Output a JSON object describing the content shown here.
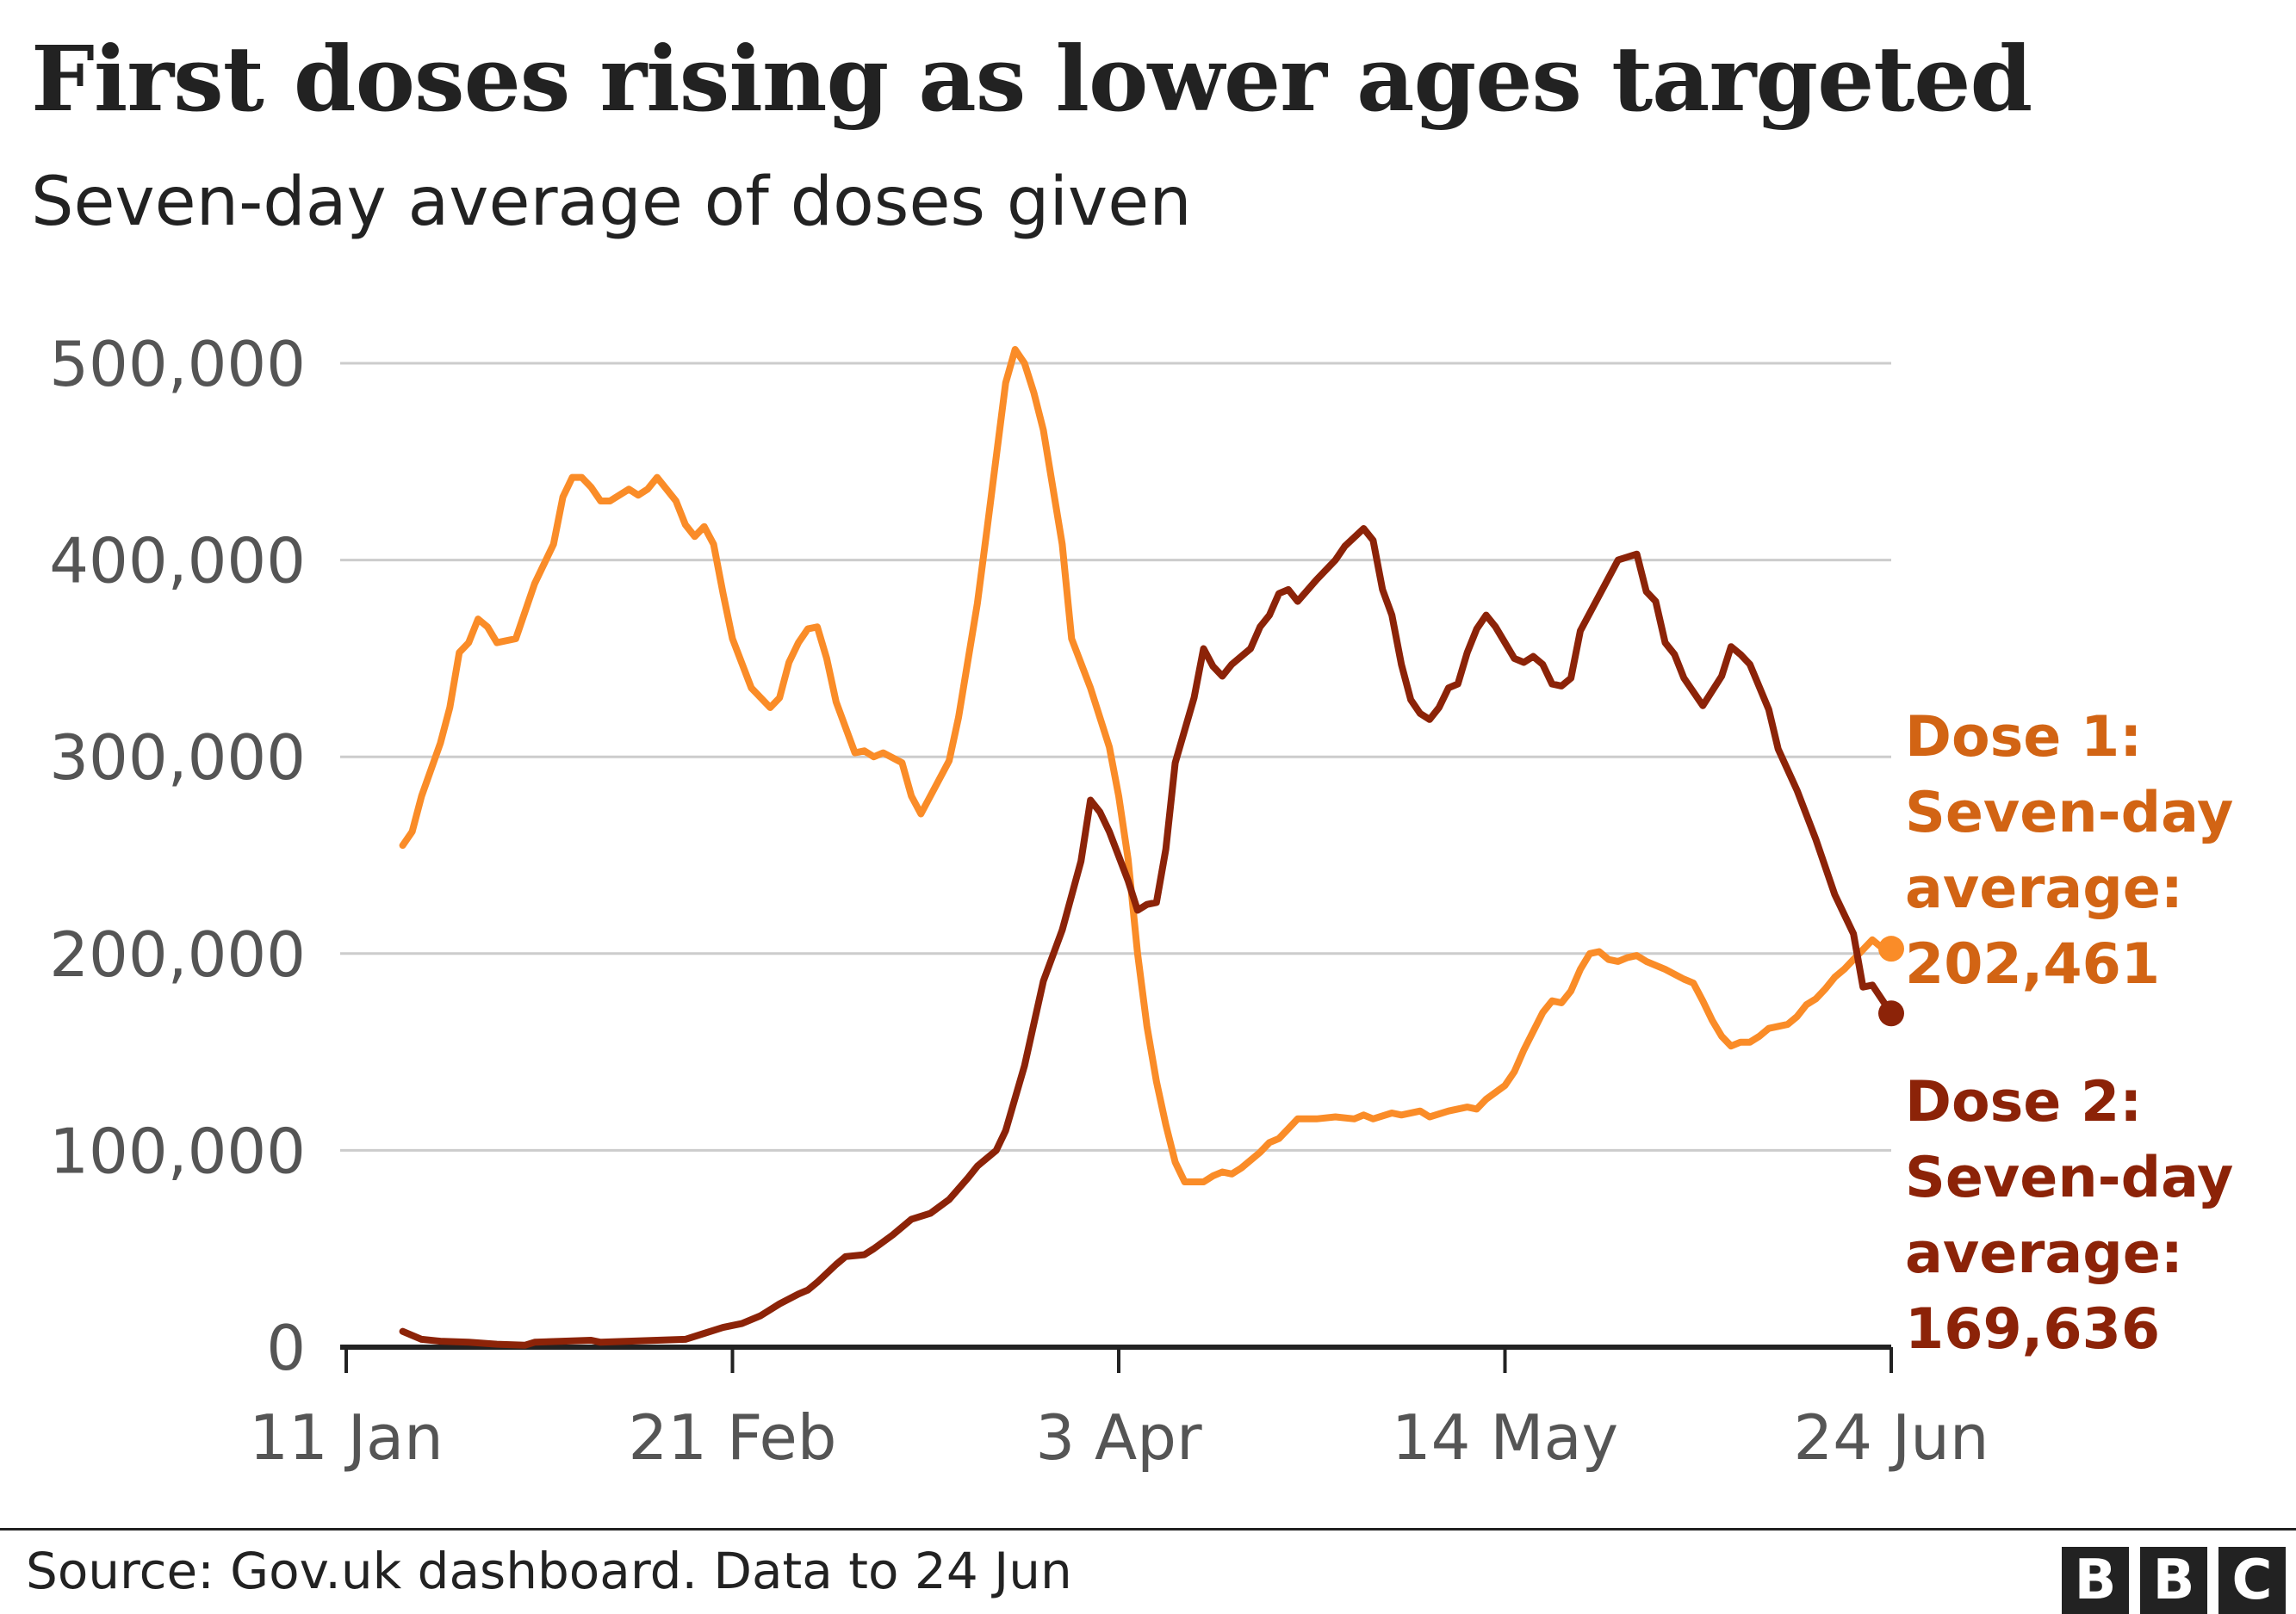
{
  "title": "First doses rising as lower ages targeted",
  "subtitle": "Seven-day average of doses given",
  "source": "Source: Gov.uk dashboard. Data to 24 Jun",
  "logo": [
    "B",
    "B",
    "C"
  ],
  "colors": {
    "dose1": "#FA8C28",
    "dose1_label": "#D26414",
    "dose2": "#8C2308",
    "grid": "#CCCCCC",
    "axis": "#222222",
    "tick_text": "#555555"
  },
  "chart_data": {
    "type": "line",
    "title": "First doses rising as lower ages targeted",
    "subtitle": "Seven-day average of doses given",
    "xlabel": "",
    "ylabel": "",
    "x_ticks": [
      {
        "date": "2021-01-11",
        "label": "11 Jan"
      },
      {
        "date": "2021-02-21",
        "label": "21 Feb"
      },
      {
        "date": "2021-04-03",
        "label": "3 Apr"
      },
      {
        "date": "2021-05-14",
        "label": "14 May"
      },
      {
        "date": "2021-06-24",
        "label": "24 Jun"
      }
    ],
    "xlim": [
      "2021-01-11",
      "2021-06-24"
    ],
    "ylim": [
      0,
      500000
    ],
    "y_ticks": [
      {
        "value": 0,
        "label": "0"
      },
      {
        "value": 100000,
        "label": "100,000"
      },
      {
        "value": 200000,
        "label": "200,000"
      },
      {
        "value": 300000,
        "label": "300,000"
      },
      {
        "value": 400000,
        "label": "400,000"
      },
      {
        "value": 500000,
        "label": "500,000"
      }
    ],
    "grid": true,
    "legend": "direct labels at right",
    "series": [
      {
        "key": "dose1",
        "color": "#FA8C28",
        "label_lines": [
          "Dose 1:",
          "Seven-day",
          "average:",
          "202,461"
        ],
        "last_value": 202461,
        "points": [
          [
            "2021-01-17",
            255000
          ],
          [
            "2021-01-18",
            262000
          ],
          [
            "2021-01-19",
            280000
          ],
          [
            "2021-01-21",
            307000
          ],
          [
            "2021-01-22",
            325000
          ],
          [
            "2021-01-23",
            353000
          ],
          [
            "2021-01-24",
            358000
          ],
          [
            "2021-01-25",
            370000
          ],
          [
            "2021-01-26",
            366000
          ],
          [
            "2021-01-27",
            358000
          ],
          [
            "2021-01-29",
            360000
          ],
          [
            "2021-01-31",
            388000
          ],
          [
            "2021-02-02",
            408000
          ],
          [
            "2021-02-03",
            432000
          ],
          [
            "2021-02-04",
            442000
          ],
          [
            "2021-02-05",
            442000
          ],
          [
            "2021-02-06",
            437000
          ],
          [
            "2021-02-07",
            430000
          ],
          [
            "2021-02-08",
            430000
          ],
          [
            "2021-02-10",
            436000
          ],
          [
            "2021-02-11",
            433000
          ],
          [
            "2021-02-12",
            436000
          ],
          [
            "2021-02-13",
            442000
          ],
          [
            "2021-02-15",
            430000
          ],
          [
            "2021-02-16",
            418000
          ],
          [
            "2021-02-17",
            412000
          ],
          [
            "2021-02-18",
            417000
          ],
          [
            "2021-02-19",
            408000
          ],
          [
            "2021-02-20",
            383000
          ],
          [
            "2021-02-21",
            360000
          ],
          [
            "2021-02-23",
            335000
          ],
          [
            "2021-02-25",
            325000
          ],
          [
            "2021-02-26",
            330000
          ],
          [
            "2021-02-27",
            348000
          ],
          [
            "2021-02-28",
            358000
          ],
          [
            "2021-03-01",
            365000
          ],
          [
            "2021-03-02",
            366000
          ],
          [
            "2021-03-03",
            350000
          ],
          [
            "2021-03-04",
            328000
          ],
          [
            "2021-03-06",
            302000
          ],
          [
            "2021-03-07",
            303000
          ],
          [
            "2021-03-08",
            300000
          ],
          [
            "2021-03-09",
            302000
          ],
          [
            "2021-03-11",
            297000
          ],
          [
            "2021-03-12",
            280000
          ],
          [
            "2021-03-13",
            271000
          ],
          [
            "2021-03-16",
            298000
          ],
          [
            "2021-03-17",
            320000
          ],
          [
            "2021-03-19",
            378000
          ],
          [
            "2021-03-20",
            415000
          ],
          [
            "2021-03-22",
            490000
          ],
          [
            "2021-03-23",
            507000
          ],
          [
            "2021-03-24",
            500000
          ],
          [
            "2021-03-25",
            485000
          ],
          [
            "2021-03-26",
            466000
          ],
          [
            "2021-03-28",
            408000
          ],
          [
            "2021-03-29",
            360000
          ],
          [
            "2021-03-31",
            335000
          ],
          [
            "2021-04-02",
            305000
          ],
          [
            "2021-04-03",
            280000
          ],
          [
            "2021-04-04",
            248000
          ],
          [
            "2021-04-05",
            200000
          ],
          [
            "2021-04-06",
            163000
          ],
          [
            "2021-04-07",
            135000
          ],
          [
            "2021-04-08",
            113000
          ],
          [
            "2021-04-09",
            94000
          ],
          [
            "2021-04-10",
            84000
          ],
          [
            "2021-04-12",
            84000
          ],
          [
            "2021-04-13",
            87000
          ],
          [
            "2021-04-14",
            89000
          ],
          [
            "2021-04-15",
            88000
          ],
          [
            "2021-04-16",
            91000
          ],
          [
            "2021-04-18",
            99000
          ],
          [
            "2021-04-19",
            104000
          ],
          [
            "2021-04-20",
            106000
          ],
          [
            "2021-04-21",
            111000
          ],
          [
            "2021-04-22",
            116000
          ],
          [
            "2021-04-24",
            116000
          ],
          [
            "2021-04-26",
            117000
          ],
          [
            "2021-04-28",
            116000
          ],
          [
            "2021-04-29",
            118000
          ],
          [
            "2021-04-30",
            116000
          ],
          [
            "2021-05-02",
            119000
          ],
          [
            "2021-05-03",
            118000
          ],
          [
            "2021-05-05",
            120000
          ],
          [
            "2021-05-06",
            117000
          ],
          [
            "2021-05-08",
            120000
          ],
          [
            "2021-05-10",
            122000
          ],
          [
            "2021-05-11",
            121000
          ],
          [
            "2021-05-12",
            126000
          ],
          [
            "2021-05-14",
            133000
          ],
          [
            "2021-05-15",
            140000
          ],
          [
            "2021-05-16",
            151000
          ],
          [
            "2021-05-18",
            170000
          ],
          [
            "2021-05-19",
            176000
          ],
          [
            "2021-05-20",
            175000
          ],
          [
            "2021-05-21",
            181000
          ],
          [
            "2021-05-22",
            192000
          ],
          [
            "2021-05-23",
            200000
          ],
          [
            "2021-05-24",
            201000
          ],
          [
            "2021-05-25",
            197000
          ],
          [
            "2021-05-26",
            196000
          ],
          [
            "2021-05-27",
            198000
          ],
          [
            "2021-05-28",
            199000
          ],
          [
            "2021-05-29",
            196000
          ],
          [
            "2021-05-31",
            192000
          ],
          [
            "2021-06-02",
            187000
          ],
          [
            "2021-06-03",
            185000
          ],
          [
            "2021-06-04",
            176000
          ],
          [
            "2021-06-05",
            166000
          ],
          [
            "2021-06-06",
            158000
          ],
          [
            "2021-06-07",
            153000
          ],
          [
            "2021-06-08",
            155000
          ],
          [
            "2021-06-09",
            155000
          ],
          [
            "2021-06-10",
            158000
          ],
          [
            "2021-06-11",
            162000
          ],
          [
            "2021-06-13",
            164000
          ],
          [
            "2021-06-14",
            168000
          ],
          [
            "2021-06-15",
            174000
          ],
          [
            "2021-06-16",
            177000
          ],
          [
            "2021-06-17",
            182000
          ],
          [
            "2021-06-18",
            188000
          ],
          [
            "2021-06-19",
            192000
          ],
          [
            "2021-06-20",
            197000
          ],
          [
            "2021-06-21",
            202000
          ],
          [
            "2021-06-22",
            207000
          ],
          [
            "2021-06-23",
            203000
          ],
          [
            "2021-06-24",
            202461
          ]
        ]
      },
      {
        "key": "dose2",
        "color": "#8C2308",
        "label_lines": [
          "Dose 2:",
          "Seven-day",
          "average:",
          "169,636"
        ],
        "last_value": 169636,
        "points": [
          [
            "2021-01-17",
            8000
          ],
          [
            "2021-01-19",
            4000
          ],
          [
            "2021-01-21",
            3000
          ],
          [
            "2021-01-24",
            2500
          ],
          [
            "2021-01-27",
            1500
          ],
          [
            "2021-01-30",
            1000
          ],
          [
            "2021-01-31",
            2500
          ],
          [
            "2021-02-03",
            3000
          ],
          [
            "2021-02-06",
            3500
          ],
          [
            "2021-02-07",
            2500
          ],
          [
            "2021-02-10",
            3000
          ],
          [
            "2021-02-13",
            3500
          ],
          [
            "2021-02-16",
            4000
          ],
          [
            "2021-02-18",
            7000
          ],
          [
            "2021-02-20",
            10000
          ],
          [
            "2021-02-22",
            12000
          ],
          [
            "2021-02-24",
            16000
          ],
          [
            "2021-02-26",
            22000
          ],
          [
            "2021-02-28",
            27000
          ],
          [
            "2021-03-01",
            29000
          ],
          [
            "2021-03-02",
            33000
          ],
          [
            "2021-03-04",
            42000
          ],
          [
            "2021-03-05",
            46000
          ],
          [
            "2021-03-07",
            47000
          ],
          [
            "2021-03-08",
            50000
          ],
          [
            "2021-03-10",
            57000
          ],
          [
            "2021-03-12",
            65000
          ],
          [
            "2021-03-14",
            68000
          ],
          [
            "2021-03-16",
            75000
          ],
          [
            "2021-03-18",
            86000
          ],
          [
            "2021-03-19",
            92000
          ],
          [
            "2021-03-21",
            100000
          ],
          [
            "2021-03-22",
            110000
          ],
          [
            "2021-03-24",
            143000
          ],
          [
            "2021-03-26",
            186000
          ],
          [
            "2021-03-28",
            212000
          ],
          [
            "2021-03-30",
            247000
          ],
          [
            "2021-03-31",
            278000
          ],
          [
            "2021-04-01",
            272000
          ],
          [
            "2021-04-02",
            262000
          ],
          [
            "2021-04-04",
            237000
          ],
          [
            "2021-04-05",
            222000
          ],
          [
            "2021-04-06",
            225000
          ],
          [
            "2021-04-07",
            226000
          ],
          [
            "2021-04-08",
            253000
          ],
          [
            "2021-04-09",
            297000
          ],
          [
            "2021-04-11",
            330000
          ],
          [
            "2021-04-12",
            355000
          ],
          [
            "2021-04-13",
            346000
          ],
          [
            "2021-04-14",
            341000
          ],
          [
            "2021-04-15",
            347000
          ],
          [
            "2021-04-17",
            355000
          ],
          [
            "2021-04-18",
            366000
          ],
          [
            "2021-04-19",
            372000
          ],
          [
            "2021-04-20",
            383000
          ],
          [
            "2021-04-21",
            385000
          ],
          [
            "2021-04-22",
            379000
          ],
          [
            "2021-04-24",
            390000
          ],
          [
            "2021-04-26",
            400000
          ],
          [
            "2021-04-27",
            407000
          ],
          [
            "2021-04-29",
            416000
          ],
          [
            "2021-04-30",
            410000
          ],
          [
            "2021-05-01",
            385000
          ],
          [
            "2021-05-02",
            372000
          ],
          [
            "2021-05-03",
            347000
          ],
          [
            "2021-05-04",
            329000
          ],
          [
            "2021-05-05",
            322000
          ],
          [
            "2021-05-06",
            319000
          ],
          [
            "2021-05-07",
            325000
          ],
          [
            "2021-05-08",
            335000
          ],
          [
            "2021-05-09",
            337000
          ],
          [
            "2021-05-10",
            353000
          ],
          [
            "2021-05-11",
            365000
          ],
          [
            "2021-05-12",
            372000
          ],
          [
            "2021-05-13",
            366000
          ],
          [
            "2021-05-15",
            350000
          ],
          [
            "2021-05-16",
            348000
          ],
          [
            "2021-05-17",
            351000
          ],
          [
            "2021-05-18",
            347000
          ],
          [
            "2021-05-19",
            337000
          ],
          [
            "2021-05-20",
            336000
          ],
          [
            "2021-05-21",
            340000
          ],
          [
            "2021-05-22",
            364000
          ],
          [
            "2021-05-24",
            382000
          ],
          [
            "2021-05-26",
            400000
          ],
          [
            "2021-05-28",
            403000
          ],
          [
            "2021-05-29",
            384000
          ],
          [
            "2021-05-30",
            379000
          ],
          [
            "2021-05-31",
            358000
          ],
          [
            "2021-06-01",
            352000
          ],
          [
            "2021-06-02",
            340000
          ],
          [
            "2021-06-04",
            326000
          ],
          [
            "2021-06-06",
            341000
          ],
          [
            "2021-06-07",
            356000
          ],
          [
            "2021-06-08",
            352000
          ],
          [
            "2021-06-09",
            347000
          ],
          [
            "2021-06-11",
            324000
          ],
          [
            "2021-06-12",
            304000
          ],
          [
            "2021-06-14",
            283000
          ],
          [
            "2021-06-16",
            258000
          ],
          [
            "2021-06-18",
            230000
          ],
          [
            "2021-06-20",
            210000
          ],
          [
            "2021-06-21",
            183000
          ],
          [
            "2021-06-22",
            184000
          ],
          [
            "2021-06-24",
            169636
          ]
        ]
      }
    ]
  }
}
